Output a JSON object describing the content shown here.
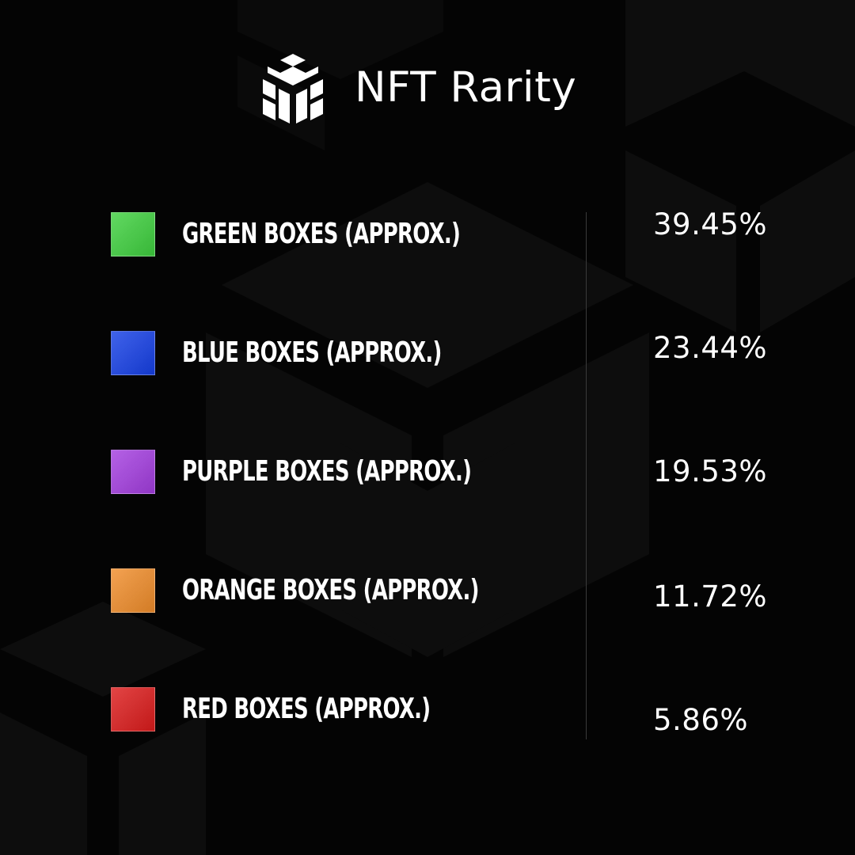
{
  "header": {
    "logo_icon": "nft-cube-logo-icon",
    "title": "NFT Rarity"
  },
  "rarity": {
    "rows": [
      {
        "label": "GREEN BOXES (APPROX.)",
        "value": "39.45%",
        "color": "#3fd03f"
      },
      {
        "label": "BLUE BOXES (APPROX.)",
        "value": "23.44%",
        "color": "#1640e6"
      },
      {
        "label": "PURPLE BOXES (APPROX.)",
        "value": "19.53%",
        "color": "#a43ee0"
      },
      {
        "label": "ORANGE BOXES (APPROX.)",
        "value": "11.72%",
        "color": "#f08d2b"
      },
      {
        "label": "RED BOXES (APPROX.)",
        "value": "5.86%",
        "color": "#dc1c1c"
      }
    ]
  },
  "theme": {
    "background": "#040404",
    "text": "#ffffff",
    "divider": "#3a3a3a"
  }
}
